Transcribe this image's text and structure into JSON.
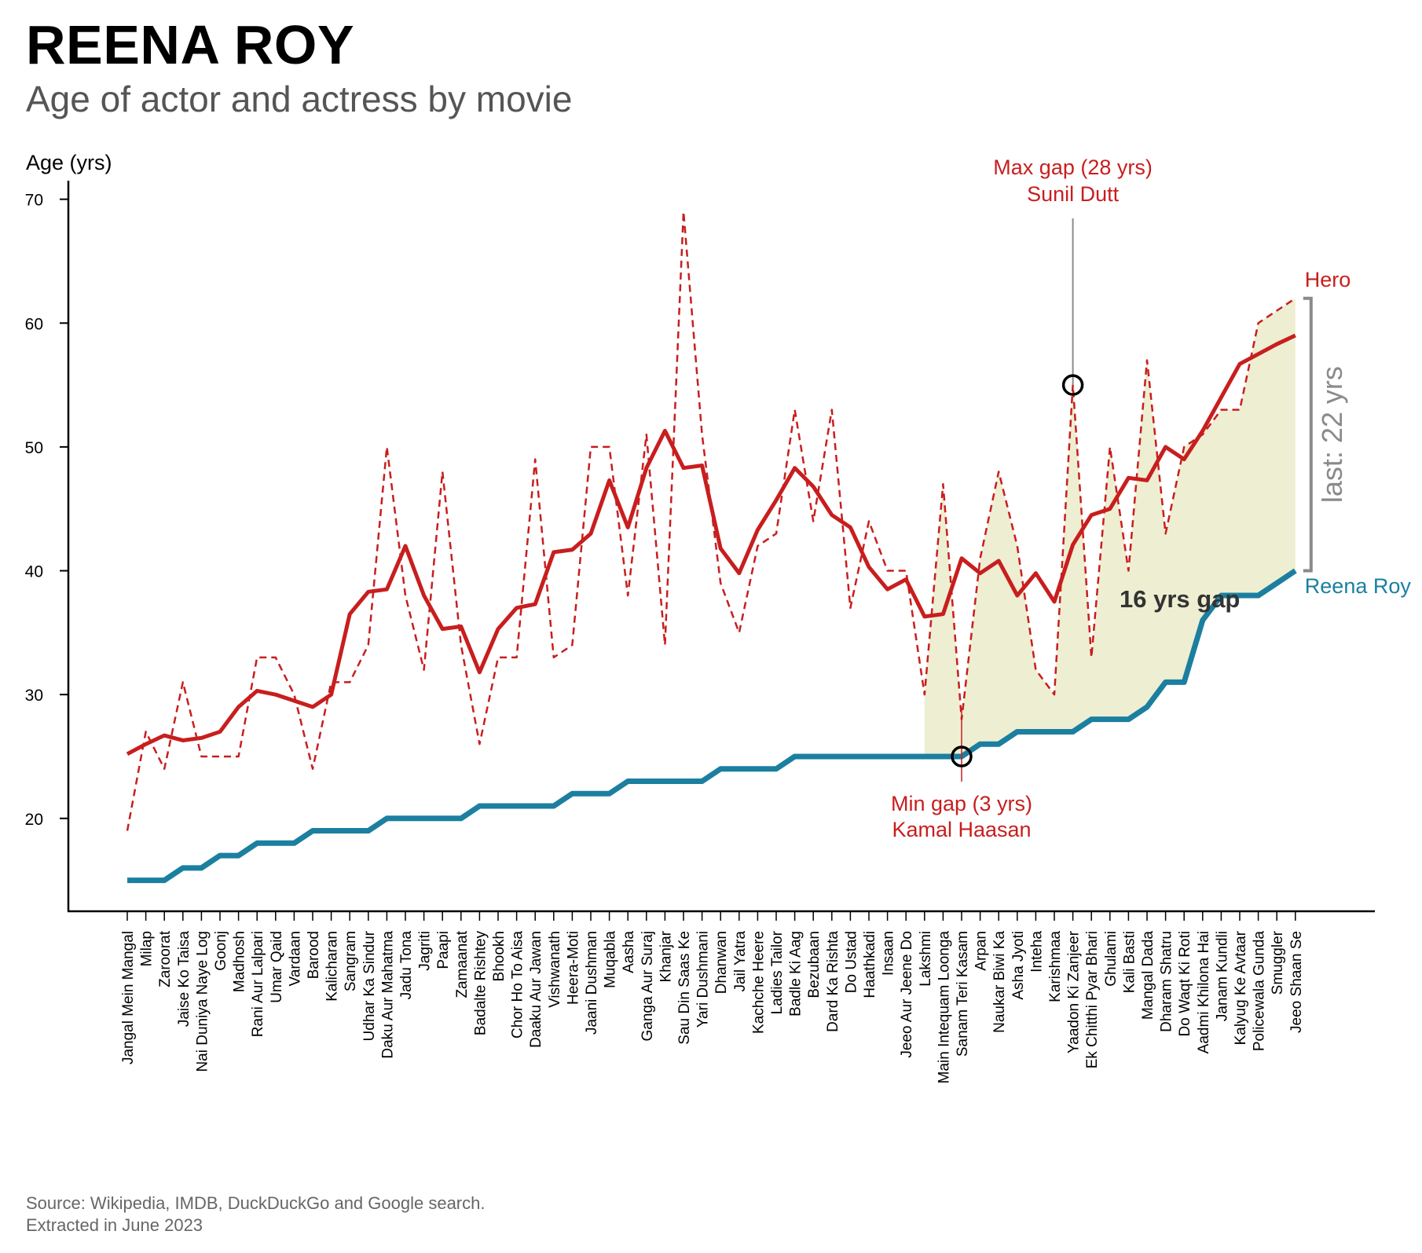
{
  "title": "REENA ROY",
  "subtitle": "Age of actor and actress by movie",
  "source": {
    "line1": "Source: Wikipedia, IMDB, DuckDuckGo and Google search.",
    "line2": "Extracted in June 2023"
  },
  "colors": {
    "hero": "#c81e1e",
    "actress": "#1b7fa0",
    "gap_fill": "#eeeed2",
    "axis": "#000000",
    "grey": "#8a8a8a",
    "annotation_dark": "#333333"
  },
  "chart_data": {
    "type": "line",
    "ylabel": "Age (yrs)",
    "ylim": [
      12.5,
      71.5
    ],
    "yticks": [
      20,
      30,
      40,
      50,
      60,
      70
    ],
    "categories": [
      "Jangal Mein Mangal",
      "Milap",
      "Zaroorat",
      "Jaise Ko Taisa",
      "Nai Duniya Naye Log",
      "Goonj",
      "Madhosh",
      "Rani Aur Lalpari",
      "Umar Qaid",
      "Vardaan",
      "Barood",
      "Kalicharan",
      "Sangram",
      "Udhar Ka Sindur",
      "Daku Aur Mahatma",
      "Jadu Tona",
      "Jagriti",
      "Paapi",
      "Zamaanat",
      "Badalte Rishtey",
      "Bhookh",
      "Chor Ho To Aisa",
      "Daaku Aur Jawan",
      "Vishwanath",
      "Heera-Moti",
      "Jaani Dushman",
      "Muqabla",
      "Aasha",
      "Ganga Aur Suraj",
      "Khanjar",
      "Sau Din Saas Ke",
      "Yari Dushmani",
      "Dhanwan",
      "Jail Yatra",
      "Kachche Heere",
      "Ladies Tailor",
      "Badle Ki Aag",
      "Bezubaan",
      "Dard Ka Rishta",
      "Do Ustad",
      "Haathkadi",
      "Insaan",
      "Jeeo Aur Jeene Do",
      "Lakshmi",
      "Main Intequam Loonga",
      "Sanam Teri Kasam",
      "Arpan",
      "Naukar Biwi Ka",
      "Asha Jyoti",
      "Inteha",
      "Karishmaa",
      "Yaadon Ki Zanjeer",
      "Ek Chitthi Pyar Bhari",
      "Ghulami",
      "Kali Basti",
      "Mangal Dada",
      "Dharam Shatru",
      "Do Waqt Ki Roti",
      "Aadmi Khilona Hai",
      "Janam Kundli",
      "Kalyug Ke Avtaar",
      "Policewala Gunda",
      "Smuggler",
      "Jeeo Shaan Se"
    ],
    "series": [
      {
        "name": "Hero",
        "style": "dashed",
        "values": [
          19,
          27,
          24,
          31,
          25,
          25,
          25,
          33,
          33,
          30,
          24,
          31,
          31,
          34,
          50,
          38,
          32,
          48,
          34,
          26,
          33,
          33,
          49,
          33,
          34,
          50,
          50,
          38,
          51,
          34,
          69,
          51,
          39,
          35,
          42,
          43,
          53,
          44,
          53,
          37,
          44,
          40,
          40,
          30,
          47,
          28,
          41,
          48,
          42,
          32,
          30,
          55,
          33,
          50,
          40,
          57,
          43,
          50,
          51,
          53,
          53,
          60,
          61,
          62
        ]
      },
      {
        "name": "Hero",
        "style": "smoothed",
        "values": [
          25.2,
          26,
          26.7,
          26.3,
          26.5,
          27,
          29,
          30.3,
          30,
          29.5,
          29,
          30,
          36.5,
          38.3,
          38.5,
          42,
          38,
          35.3,
          35.5,
          31.8,
          35.3,
          37,
          37.3,
          41.5,
          41.7,
          43,
          47.3,
          43.5,
          48.3,
          51.3,
          48.3,
          48.5,
          41.8,
          39.8,
          43.3,
          45.7,
          48.3,
          46.8,
          44.5,
          43.5,
          40.3,
          38.5,
          39.3,
          36.3,
          36.5,
          41,
          39.8,
          40.8,
          38,
          39.8,
          37.5,
          42.1,
          44.5,
          45,
          47.5,
          47.3,
          50,
          49,
          51.3,
          54,
          56.7,
          57.5,
          58.3,
          59
        ]
      },
      {
        "name": "Reena Roy",
        "style": "solid",
        "values": [
          15,
          15,
          15,
          16,
          16,
          17,
          17,
          18,
          18,
          18,
          19,
          19,
          19,
          19,
          20,
          20,
          20,
          20,
          20,
          21,
          21,
          21,
          21,
          21,
          22,
          22,
          22,
          23,
          23,
          23,
          23,
          23,
          24,
          24,
          24,
          24,
          25,
          25,
          25,
          25,
          25,
          25,
          25,
          25,
          25,
          25,
          26,
          26,
          27,
          27,
          27,
          27,
          28,
          28,
          28,
          29,
          31,
          31,
          36,
          38,
          38,
          38,
          39,
          40
        ]
      }
    ],
    "gap_fill_from": "Lakshmi",
    "annotations": {
      "max_gap": {
        "label": "Max gap (28 yrs)",
        "actor": "Sunil Dutt",
        "movie": "Yaadon Ki Zanjeer"
      },
      "min_gap": {
        "label": "Min gap (3 yrs)",
        "actor": "Kamal Haasan",
        "movie": "Sanam Teri Kasam"
      },
      "avg_gap": "16 yrs gap",
      "last_gap": "last: 22 yrs",
      "hero_end_label": "Hero",
      "actress_end_label": "Reena Roy"
    }
  }
}
